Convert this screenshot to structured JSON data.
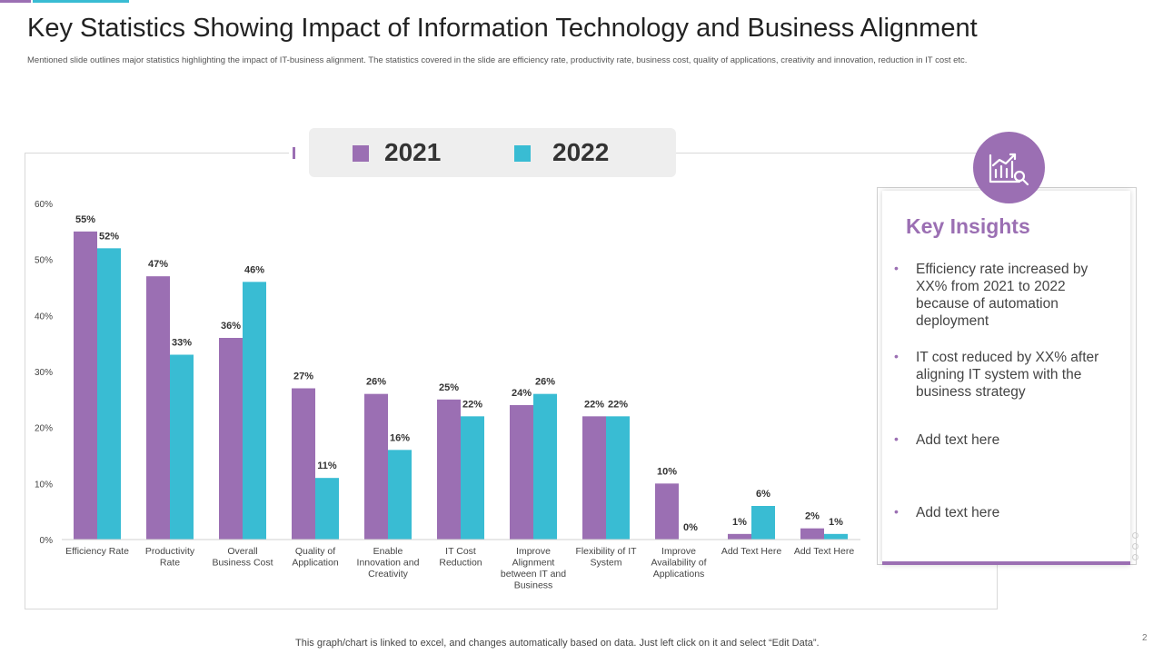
{
  "slide": {
    "title": "Key Statistics Showing Impact of Information Technology and Business Alignment",
    "subtitle": "Mentioned slide outlines major statistics highlighting the impact of IT-business alignment. The statistics covered in the slide are efficiency rate, productivity rate, business cost, quality of applications, creativity and innovation, reduction in IT cost etc.",
    "footer": "This graph/chart is linked to excel, and changes automatically based on data. Just left click on it and select “Edit Data”.",
    "page_number": "2"
  },
  "colors": {
    "series_2021": "#9b6fb3",
    "series_2022": "#39bcd3",
    "accent": "#9b6fb3"
  },
  "chart_data": {
    "type": "bar",
    "title": "",
    "xlabel": "",
    "ylabel": "",
    "ylim": [
      0,
      60
    ],
    "yticks": [
      "0%",
      "10%",
      "20%",
      "30%",
      "40%",
      "50%",
      "60%"
    ],
    "categories": [
      [
        "Efficiency Rate"
      ],
      [
        "Productivity",
        "Rate"
      ],
      [
        "Overall",
        "Business Cost"
      ],
      [
        "Quality of",
        "Application"
      ],
      [
        "Enable",
        "Innovation and",
        "Creativity"
      ],
      [
        "IT Cost",
        "Reduction"
      ],
      [
        "Improve",
        "Alignment",
        "between IT and",
        "Business"
      ],
      [
        "Flexibility of IT",
        "System"
      ],
      [
        "Improve",
        "Availability of",
        "Applications"
      ],
      [
        "Add Text Here"
      ],
      [
        "Add Text Here"
      ]
    ],
    "series": [
      {
        "name": "2021",
        "values": [
          55,
          47,
          36,
          27,
          26,
          25,
          24,
          22,
          10,
          1,
          2
        ],
        "labels": [
          "55%",
          "47%",
          "36%",
          "27%",
          "26%",
          "25%",
          "24%",
          "22%",
          "10%",
          "1%",
          "2%"
        ]
      },
      {
        "name": "2022",
        "values": [
          52,
          33,
          46,
          11,
          16,
          22,
          26,
          22,
          0,
          6,
          1
        ],
        "labels": [
          "52%",
          "33%",
          "46%",
          "11%",
          "16%",
          "22%",
          "26%",
          "22%",
          "0%",
          "6%",
          "1%"
        ]
      }
    ],
    "legend": "top-center"
  },
  "insights": {
    "title": "Key Insights",
    "icon": "chart-magnifier-icon",
    "bullet": "•",
    "items": [
      "Efficiency rate increased by XX% from 2021 to 2022 because of automation deployment",
      "IT cost reduced by XX% after aligning IT system with the business strategy",
      "Add text here",
      "Add text here"
    ]
  }
}
